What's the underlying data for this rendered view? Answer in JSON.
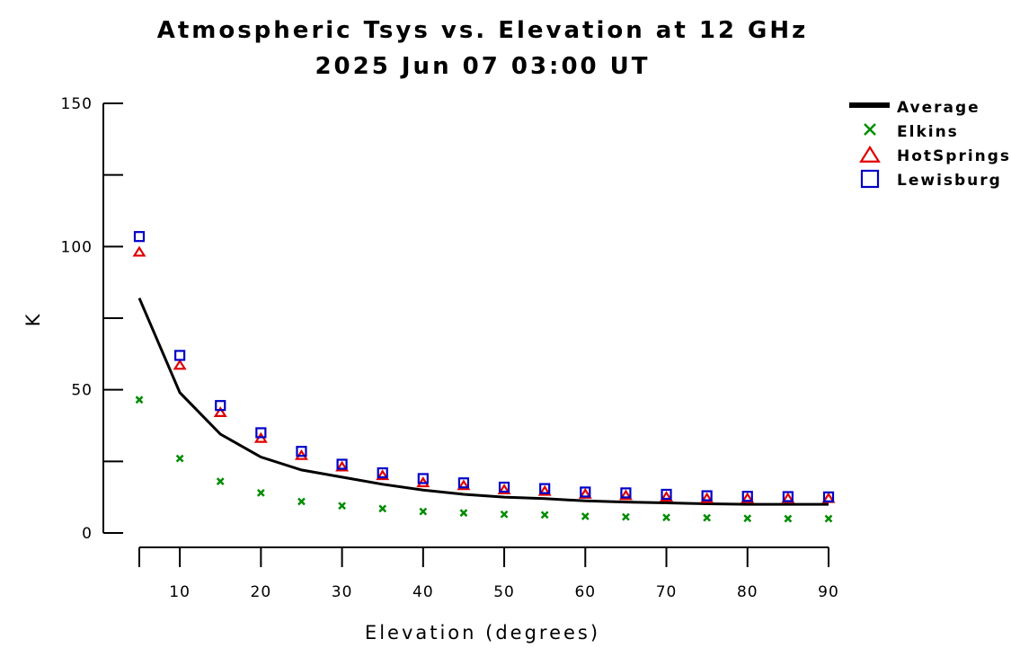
{
  "chart_data": {
    "type": "scatter",
    "title": "Atmospheric Tsys vs. Elevation at 12 GHz",
    "subtitle": "2025 Jun 07 03:00 UT",
    "xlabel": "Elevation (degrees)",
    "ylabel": "K",
    "xlim": [
      5,
      90
    ],
    "ylim": [
      0,
      150
    ],
    "x_ticks": [
      10,
      20,
      30,
      40,
      50,
      60,
      70,
      80,
      90
    ],
    "y_ticks": [
      0,
      50,
      100,
      150
    ],
    "grid": false,
    "legend_position": "top-right",
    "x": [
      5,
      10,
      15,
      20,
      25,
      30,
      35,
      40,
      45,
      50,
      55,
      60,
      65,
      70,
      75,
      80,
      85,
      90
    ],
    "series": [
      {
        "name": "Average",
        "style": "line",
        "color": "#000000",
        "values": [
          82,
          49,
          34.5,
          26.5,
          22,
          19.5,
          17,
          15,
          13.5,
          12.5,
          12,
          11.2,
          10.8,
          10.5,
          10.2,
          10,
          10,
          10
        ]
      },
      {
        "name": "Elkins",
        "style": "x-marker",
        "color": "#008c00",
        "values": [
          46.5,
          26,
          18,
          14,
          11,
          9.5,
          8.5,
          7.5,
          7,
          6.5,
          6.3,
          5.8,
          5.6,
          5.4,
          5.3,
          5.1,
          5,
          5
        ]
      },
      {
        "name": "HotSprings",
        "style": "triangle-marker",
        "color": "#e00000",
        "values": [
          98,
          58.5,
          42,
          33,
          27,
          23,
          20,
          17.5,
          16.5,
          15,
          14.5,
          13.5,
          13,
          12.5,
          12,
          12,
          12,
          12
        ]
      },
      {
        "name": "Lewisburg",
        "style": "square-marker",
        "color": "#0000c8",
        "values": [
          103.5,
          62,
          44.5,
          35,
          28.5,
          24,
          21,
          19,
          17.5,
          16,
          15.5,
          14.3,
          14,
          13.5,
          13,
          12.8,
          12.7,
          12.6
        ]
      }
    ]
  }
}
